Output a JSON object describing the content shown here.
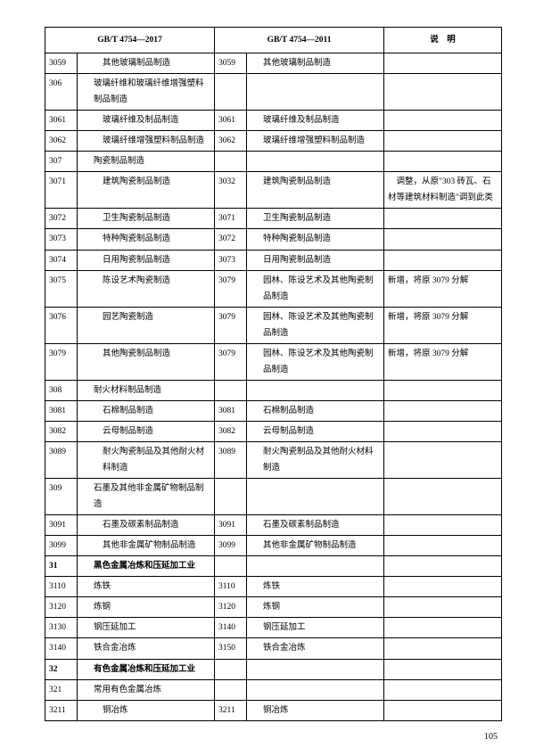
{
  "headers": {
    "col2017": "GB/T 4754—2017",
    "col2011": "GB/T 4754—2011",
    "note": "说　明"
  },
  "page_number": "105",
  "rows": [
    {
      "c1": "3059",
      "n1": "其他玻璃制品制造",
      "i1": 2,
      "c2": "3059",
      "n2": "其他玻璃制品制造",
      "i2": 1,
      "note": ""
    },
    {
      "c1": "306",
      "n1": "玻璃纤维和玻璃纤维增强塑料制品制造",
      "i1": 1,
      "c2": "",
      "n2": "",
      "i2": 0,
      "note": ""
    },
    {
      "c1": "3061",
      "n1": "玻璃纤维及制品制造",
      "i1": 2,
      "c2": "3061",
      "n2": "玻璃纤维及制品制造",
      "i2": 1,
      "note": ""
    },
    {
      "c1": "3062",
      "n1": "玻璃纤维增强塑料制品制造",
      "i1": 2,
      "c2": "3062",
      "n2": "玻璃纤维增强塑料制品制造",
      "i2": 1,
      "note": ""
    },
    {
      "c1": "307",
      "n1": "陶瓷制品制造",
      "i1": 1,
      "c2": "",
      "n2": "",
      "i2": 0,
      "note": ""
    },
    {
      "c1": "3071",
      "n1": "建筑陶瓷制品制造",
      "i1": 2,
      "c2": "3032",
      "n2": "建筑陶瓷制品制造",
      "i2": 1,
      "note": "　调整，从原\"303 砖瓦、石材等建筑材料制造\"调到此类"
    },
    {
      "c1": "3072",
      "n1": "卫生陶瓷制品制造",
      "i1": 2,
      "c2": "3071",
      "n2": "卫生陶瓷制品制造",
      "i2": 1,
      "note": ""
    },
    {
      "c1": "3073",
      "n1": "特种陶瓷制品制造",
      "i1": 2,
      "c2": "3072",
      "n2": "特种陶瓷制品制造",
      "i2": 1,
      "note": ""
    },
    {
      "c1": "3074",
      "n1": "日用陶瓷制品制造",
      "i1": 2,
      "c2": "3073",
      "n2": "日用陶瓷制品制造",
      "i2": 1,
      "note": ""
    },
    {
      "c1": "3075",
      "n1": "陈设艺术陶瓷制造",
      "i1": 2,
      "c2": "3079",
      "n2": "园林、陈设艺术及其他陶瓷制品制造",
      "i2": 1,
      "note": "新增，将原 3079 分解"
    },
    {
      "c1": "3076",
      "n1": "园艺陶瓷制造",
      "i1": 2,
      "c2": "3079",
      "n2": "园林、陈设艺术及其他陶瓷制品制造",
      "i2": 1,
      "note": "新增，将原 3079 分解"
    },
    {
      "c1": "3079",
      "n1": "其他陶瓷制品制造",
      "i1": 2,
      "c2": "3079",
      "n2": "园林、陈设艺术及其他陶瓷制品制造",
      "i2": 1,
      "note": "新增，将原 3079 分解"
    },
    {
      "c1": "308",
      "n1": "耐火材料制品制造",
      "i1": 1,
      "c2": "",
      "n2": "",
      "i2": 0,
      "note": ""
    },
    {
      "c1": "3081",
      "n1": "石棉制品制造",
      "i1": 2,
      "c2": "3081",
      "n2": "石棉制品制造",
      "i2": 1,
      "note": ""
    },
    {
      "c1": "3082",
      "n1": "云母制品制造",
      "i1": 2,
      "c2": "3082",
      "n2": "云母制品制造",
      "i2": 1,
      "note": ""
    },
    {
      "c1": "3089",
      "n1": "耐火陶瓷制品及其他耐火材料制造",
      "i1": 2,
      "c2": "3089",
      "n2": "耐火陶瓷制品及其他耐火材料制造",
      "i2": 1,
      "note": ""
    },
    {
      "c1": "309",
      "n1": "石墨及其他非金属矿物制品制造",
      "i1": 1,
      "c2": "",
      "n2": "",
      "i2": 0,
      "note": ""
    },
    {
      "c1": "3091",
      "n1": "石墨及碳素制品制造",
      "i1": 2,
      "c2": "3091",
      "n2": "石墨及碳素制品制造",
      "i2": 1,
      "note": ""
    },
    {
      "c1": "3099",
      "n1": "其他非金属矿物制品制造",
      "i1": 2,
      "c2": "3099",
      "n2": "其他非金属矿物制品制造",
      "i2": 1,
      "note": ""
    },
    {
      "c1": "31",
      "n1": "黑色金属冶炼和压延加工业",
      "i1": 1,
      "b1": true,
      "c2": "",
      "n2": "",
      "i2": 0,
      "note": ""
    },
    {
      "c1": "3110",
      "n1": "炼铁",
      "i1": 1,
      "c2": "3110",
      "n2": "炼铁",
      "i2": 1,
      "note": ""
    },
    {
      "c1": "3120",
      "n1": "炼钢",
      "i1": 1,
      "c2": "3120",
      "n2": "炼钢",
      "i2": 1,
      "note": ""
    },
    {
      "c1": "3130",
      "n1": "钢压延加工",
      "i1": 1,
      "c2": "3140",
      "n2": "钢压延加工",
      "i2": 1,
      "note": ""
    },
    {
      "c1": "3140",
      "n1": "铁合金冶炼",
      "i1": 1,
      "c2": "3150",
      "n2": "铁合金冶炼",
      "i2": 1,
      "note": ""
    },
    {
      "c1": "32",
      "n1": "有色金属冶炼和压延加工业",
      "i1": 1,
      "b1": true,
      "c2": "",
      "n2": "",
      "i2": 0,
      "note": ""
    },
    {
      "c1": "321",
      "n1": "常用有色金属冶炼",
      "i1": 1,
      "c2": "",
      "n2": "",
      "i2": 0,
      "note": ""
    },
    {
      "c1": "3211",
      "n1": "铜冶炼",
      "i1": 2,
      "c2": "3211",
      "n2": "铜冶炼",
      "i2": 1,
      "note": ""
    }
  ]
}
